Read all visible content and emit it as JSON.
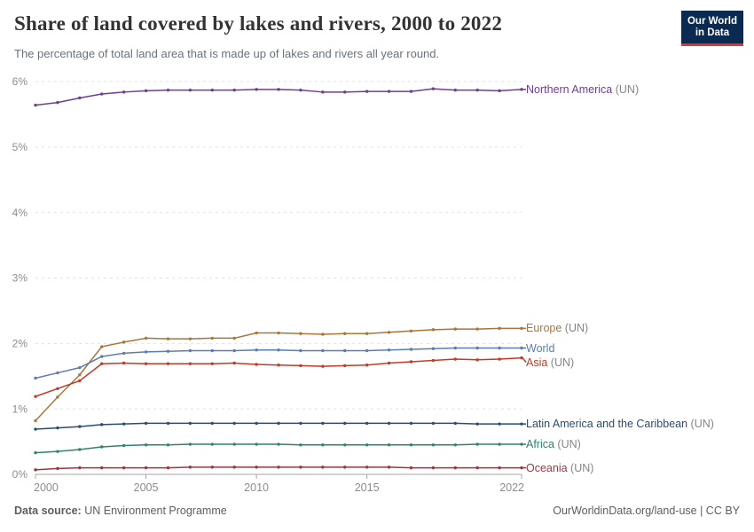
{
  "header": {
    "title": "Share of land covered by lakes and rivers, 2000 to 2022",
    "subtitle": "The percentage of total land area that is made up of lakes and rivers all year round.",
    "logo": {
      "line1": "Our World",
      "line2": "in Data",
      "bg_color": "#0A2A52",
      "accent_color": "#E2342B"
    }
  },
  "chart_data": {
    "type": "line",
    "title": "Share of land covered by lakes and rivers, 2000 to 2022",
    "x": [
      2000,
      2001,
      2002,
      2003,
      2004,
      2005,
      2006,
      2007,
      2008,
      2009,
      2010,
      2011,
      2012,
      2013,
      2014,
      2015,
      2016,
      2017,
      2018,
      2019,
      2020,
      2021,
      2022
    ],
    "xlabel": "",
    "ylabel": "",
    "ylim": [
      0,
      6
    ],
    "grid": "horizontal-dashed",
    "legend_position": "right",
    "axis_color": "#A5A5A5",
    "gridline_color": "#E2E2E2",
    "tick_label_color": "#8C8C8C",
    "suffix_color": "#858585",
    "yticks": [
      {
        "value": 0,
        "label": "0%"
      },
      {
        "value": 1,
        "label": "1%"
      },
      {
        "value": 2,
        "label": "2%"
      },
      {
        "value": 3,
        "label": "3%"
      },
      {
        "value": 4,
        "label": "4%"
      },
      {
        "value": 5,
        "label": "5%"
      },
      {
        "value": 6,
        "label": "6%"
      }
    ],
    "xticks": [
      {
        "value": 2000,
        "label": "2000"
      },
      {
        "value": 2005,
        "label": "2005"
      },
      {
        "value": 2010,
        "label": "2010"
      },
      {
        "value": 2015,
        "label": "2015"
      },
      {
        "value": 2022,
        "label": "2022"
      }
    ],
    "series": [
      {
        "name": "Northern America",
        "label_suffix": " (UN)",
        "color": "#6D3E91",
        "values": [
          5.64,
          5.68,
          5.75,
          5.81,
          5.84,
          5.86,
          5.87,
          5.87,
          5.87,
          5.87,
          5.88,
          5.88,
          5.87,
          5.84,
          5.84,
          5.85,
          5.85,
          5.85,
          5.89,
          5.87,
          5.87,
          5.86,
          5.88
        ]
      },
      {
        "name": "Europe",
        "label_suffix": " (UN)",
        "color": "#A8763B",
        "values": [
          0.82,
          1.18,
          1.52,
          1.95,
          2.02,
          2.08,
          2.07,
          2.07,
          2.08,
          2.08,
          2.16,
          2.16,
          2.15,
          2.14,
          2.15,
          2.15,
          2.17,
          2.19,
          2.21,
          2.22,
          2.22,
          2.23,
          2.23
        ]
      },
      {
        "name": "World",
        "label_suffix": "",
        "color": "#5B7CB0",
        "values": [
          1.47,
          1.55,
          1.63,
          1.8,
          1.85,
          1.87,
          1.88,
          1.89,
          1.89,
          1.89,
          1.9,
          1.9,
          1.89,
          1.89,
          1.89,
          1.89,
          1.9,
          1.91,
          1.92,
          1.93,
          1.93,
          1.93,
          1.93
        ]
      },
      {
        "name": "Asia",
        "label_suffix": " (UN)",
        "color": "#BF3B26",
        "values": [
          1.19,
          1.31,
          1.43,
          1.69,
          1.7,
          1.69,
          1.69,
          1.69,
          1.69,
          1.7,
          1.68,
          1.67,
          1.66,
          1.65,
          1.66,
          1.67,
          1.7,
          1.72,
          1.74,
          1.76,
          1.75,
          1.76,
          1.78
        ]
      },
      {
        "name": "Latin America and the Caribbean",
        "label_suffix": " (UN)",
        "color": "#2B4C6F",
        "values": [
          0.69,
          0.71,
          0.73,
          0.76,
          0.77,
          0.78,
          0.78,
          0.78,
          0.78,
          0.78,
          0.78,
          0.78,
          0.78,
          0.78,
          0.78,
          0.78,
          0.78,
          0.78,
          0.78,
          0.78,
          0.77,
          0.77,
          0.77
        ]
      },
      {
        "name": "Africa",
        "label_suffix": " (UN)",
        "color": "#2E8465",
        "values": [
          0.33,
          0.35,
          0.38,
          0.42,
          0.44,
          0.45,
          0.45,
          0.46,
          0.46,
          0.46,
          0.46,
          0.46,
          0.45,
          0.45,
          0.45,
          0.45,
          0.45,
          0.45,
          0.45,
          0.45,
          0.46,
          0.46,
          0.46
        ]
      },
      {
        "name": "Oceania",
        "label_suffix": " (UN)",
        "color": "#993843",
        "values": [
          0.07,
          0.09,
          0.1,
          0.1,
          0.1,
          0.1,
          0.1,
          0.11,
          0.11,
          0.11,
          0.11,
          0.11,
          0.11,
          0.11,
          0.11,
          0.11,
          0.11,
          0.1,
          0.1,
          0.1,
          0.1,
          0.1,
          0.1
        ]
      }
    ]
  },
  "footer": {
    "datasource_label": "Data source:",
    "datasource_value": "UN Environment Programme",
    "license": "OurWorldinData.org/land-use | CC BY"
  }
}
